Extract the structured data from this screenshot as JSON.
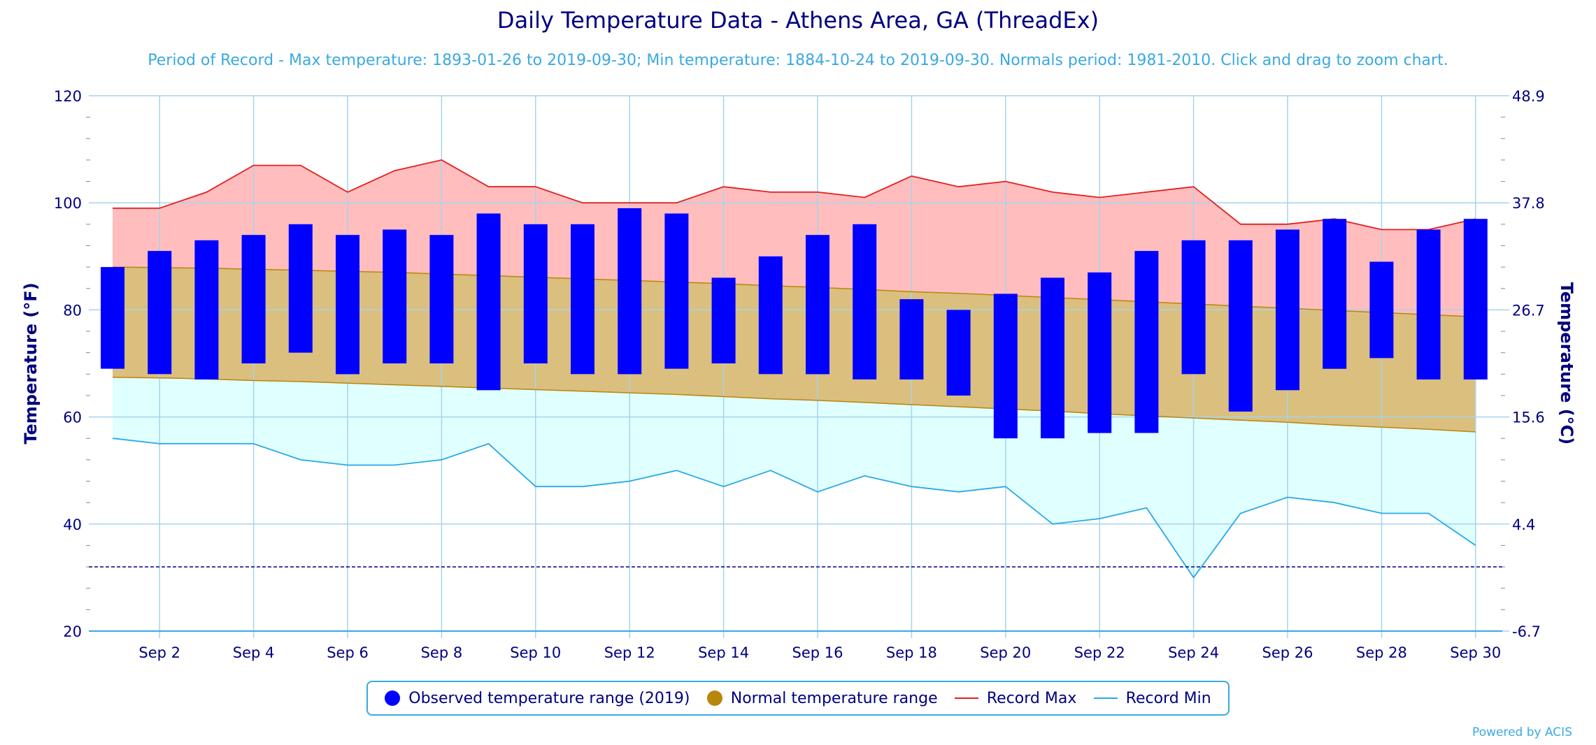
{
  "chart_data": {
    "type": "bar",
    "title": "Daily Temperature Data - Athens Area, GA (ThreadEx)",
    "subtitle": "Period of Record - Max temperature: 1893-01-26 to 2019-09-30; Min temperature: 1884-10-24 to 2019-09-30. Normals period: 1981-2010. Click and drag to zoom chart.",
    "ylabel": "Temperature (°F)",
    "y2label": "Temperature (°C)",
    "ylim": [
      20,
      120
    ],
    "yticks": [
      20,
      40,
      60,
      80,
      100,
      120
    ],
    "y2ticks": [
      "-6.7",
      "4.4",
      "15.6",
      "26.7",
      "37.8",
      "48.9"
    ],
    "xticklabels": [
      "Sep 2",
      "Sep 4",
      "Sep 6",
      "Sep 8",
      "Sep 10",
      "Sep 12",
      "Sep 14",
      "Sep 16",
      "Sep 18",
      "Sep 20",
      "Sep 22",
      "Sep 24",
      "Sep 26",
      "Sep 28",
      "Sep 30"
    ],
    "xtick_days": [
      2,
      4,
      6,
      8,
      10,
      12,
      14,
      16,
      18,
      20,
      22,
      24,
      26,
      28,
      30
    ],
    "days": [
      1,
      2,
      3,
      4,
      5,
      6,
      7,
      8,
      9,
      10,
      11,
      12,
      13,
      14,
      15,
      16,
      17,
      18,
      19,
      20,
      21,
      22,
      23,
      24,
      25,
      26,
      27,
      28,
      29,
      30
    ],
    "series": [
      {
        "name": "Observed temperature range (2019)",
        "color": "#0000ff",
        "low": [
          69,
          68,
          67,
          70,
          72,
          68,
          70,
          70,
          65,
          70,
          68,
          68,
          69,
          70,
          68,
          68,
          67,
          67,
          64,
          56,
          56,
          57,
          57,
          68,
          61,
          65,
          69,
          71,
          67,
          67
        ],
        "high": [
          88,
          91,
          93,
          94,
          96,
          94,
          95,
          94,
          98,
          96,
          96,
          99,
          98,
          86,
          90,
          94,
          96,
          82,
          80,
          83,
          86,
          87,
          91,
          93,
          93,
          95,
          97,
          89,
          95,
          97
        ]
      },
      {
        "name": "Normal temperature range",
        "color": "#b8860b",
        "fill": "#dbbf7e",
        "low": [
          67.4,
          67.3,
          67.1,
          66.8,
          66.6,
          66.3,
          66.0,
          65.7,
          65.4,
          65.1,
          64.8,
          64.5,
          64.2,
          63.8,
          63.4,
          63.1,
          62.7,
          62.3,
          61.9,
          61.5,
          61.1,
          60.6,
          60.2,
          59.8,
          59.4,
          59.0,
          58.5,
          58.1,
          57.7,
          57.2
        ],
        "high": [
          88.0,
          87.9,
          87.8,
          87.6,
          87.4,
          87.2,
          87.0,
          86.7,
          86.4,
          86.1,
          85.8,
          85.5,
          85.2,
          84.9,
          84.5,
          84.2,
          83.8,
          83.4,
          83.1,
          82.7,
          82.3,
          81.9,
          81.5,
          81.1,
          80.7,
          80.3,
          79.9,
          79.5,
          79.1,
          78.7
        ]
      },
      {
        "name": "Record Max",
        "color": "#e32020",
        "fill": "#ffbdbd",
        "values": [
          99,
          99,
          102,
          107,
          107,
          102,
          106,
          108,
          103,
          103,
          100,
          100,
          100,
          103,
          102,
          102,
          101,
          105,
          103,
          104,
          102,
          101,
          102,
          103,
          96,
          96,
          97,
          95,
          95,
          97
        ]
      },
      {
        "name": "Record Min",
        "color": "#29a9e6",
        "fill": "#e0ffff",
        "values": [
          56,
          55,
          55,
          55,
          52,
          51,
          51,
          52,
          55,
          47,
          47,
          48,
          50,
          47,
          50,
          46,
          49,
          47,
          46,
          47,
          40,
          41,
          43,
          30,
          42,
          45,
          44,
          42,
          42,
          36
        ]
      }
    ],
    "reference_line": {
      "y": 32,
      "color": "#000080",
      "style": "dashed"
    },
    "grid": true,
    "legend_position": "bottom-center"
  },
  "credits": "Powered by ACIS",
  "colors": {
    "axis_text": "#000080",
    "subtitle": "#3aa9e0",
    "gridline": "#a6d4ea",
    "plot_border": "#3aa9e0"
  }
}
